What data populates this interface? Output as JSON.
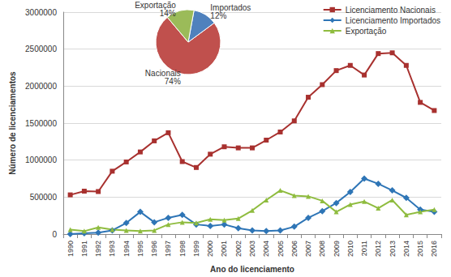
{
  "chart_data": [
    {
      "type": "line",
      "x_label": "Ano do licenciamento",
      "y_label": "Número de licenciamentos",
      "categories": [
        "1990",
        "1991",
        "1992",
        "1993",
        "1994",
        "1995",
        "1996",
        "1997",
        "1998",
        "1999",
        "2000",
        "2001",
        "2002",
        "2003",
        "2004",
        "2005",
        "2006",
        "2007",
        "2008",
        "2009",
        "2010",
        "2011",
        "2012",
        "2013",
        "2014",
        "2015",
        "2016"
      ],
      "series": [
        {
          "name": "Licenciamento Nacionais",
          "color": "#a8312f",
          "marker": "square",
          "values": [
            530000,
            580000,
            575000,
            850000,
            975000,
            1110000,
            1260000,
            1370000,
            980000,
            900000,
            1080000,
            1180000,
            1165000,
            1165000,
            1270000,
            1380000,
            1530000,
            1850000,
            2020000,
            2210000,
            2280000,
            2150000,
            2440000,
            2450000,
            2280000,
            1780000,
            1670000
          ]
        },
        {
          "name": "Licenciamento Importados",
          "color": "#2e75b6",
          "marker": "diamond",
          "values": [
            0,
            10000,
            20000,
            50000,
            150000,
            300000,
            160000,
            220000,
            260000,
            130000,
            110000,
            130000,
            80000,
            50000,
            40000,
            50000,
            100000,
            220000,
            310000,
            420000,
            570000,
            750000,
            680000,
            590000,
            490000,
            330000,
            300000
          ]
        },
        {
          "name": "Exportação",
          "color": "#8fbc3f",
          "marker": "triangle",
          "values": [
            60000,
            40000,
            90000,
            60000,
            50000,
            40000,
            50000,
            130000,
            160000,
            150000,
            200000,
            190000,
            210000,
            320000,
            460000,
            590000,
            520000,
            510000,
            450000,
            300000,
            400000,
            440000,
            350000,
            460000,
            260000,
            300000,
            330000
          ]
        }
      ],
      "ylim": [
        0,
        3000000
      ],
      "yticks": [
        0,
        500000,
        1000000,
        1500000,
        2000000,
        2500000,
        3000000
      ],
      "grid": true,
      "legend": "upper right"
    },
    {
      "type": "pie",
      "categories": [
        "Nacionais",
        "Importados",
        "Exportação"
      ],
      "values": [
        74,
        12,
        14
      ],
      "value_labels": [
        "74%",
        "12%",
        "14%"
      ],
      "colors": [
        "#c0504d",
        "#4f81bd",
        "#9bbb59"
      ],
      "data_labels": true
    }
  ]
}
